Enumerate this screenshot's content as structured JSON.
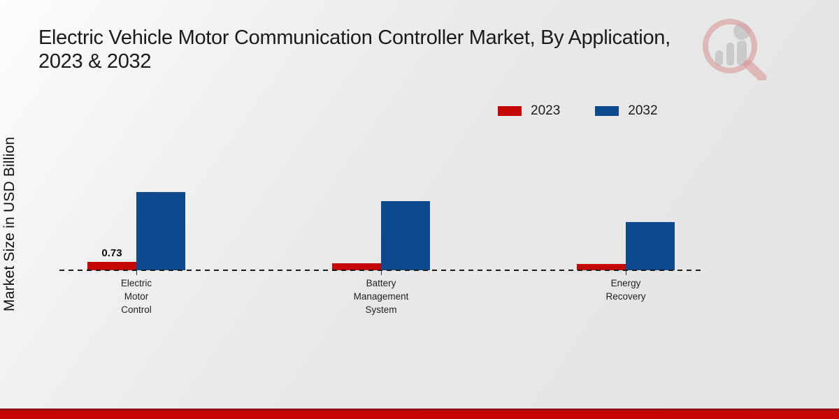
{
  "header": {
    "title_lines": [
      "Electric Vehicle Motor Communication Controller Market, By Application,",
      "2023 & 2032"
    ],
    "title_full": "Electric Vehicle Motor Communication Controller Market, By Application, 2023 & 2032"
  },
  "y_axis": {
    "label": "Market Size in USD Billion"
  },
  "chart_data": {
    "type": "bar",
    "title": "Electric Vehicle Motor Communication Controller Market, By Application, 2023 & 2032",
    "ylabel": "Market Size in USD Billion",
    "xlabel": "",
    "categories": [
      "Electric Motor Control",
      "Battery Management System",
      "Energy Recovery"
    ],
    "series": [
      {
        "name": "2023",
        "color": "#c40606",
        "values": [
          0.73,
          0.61,
          0.55
        ]
      },
      {
        "name": "2032",
        "color": "#0d4a8d",
        "values": [
          6.8,
          6.0,
          4.2
        ]
      }
    ],
    "data_labels": [
      {
        "series_index": 0,
        "category_index": 0,
        "text": "0.73"
      }
    ],
    "grid": false,
    "y_axis_ticks": [],
    "baseline_style": "dashed",
    "legend_position": "top-right"
  },
  "watermark": {
    "icon": "mrfr-magnifier-bar-chart-logo"
  },
  "footer": {
    "strip_color": "#c50404"
  },
  "colors": {
    "bar_red": "#c40606",
    "bar_blue": "#0d4a8d",
    "background_top_left": "#fdfdfd",
    "background_bottom_right": "#e4e4e4",
    "footer_red": "#c50404",
    "footer_dark_red": "#8d1111"
  }
}
